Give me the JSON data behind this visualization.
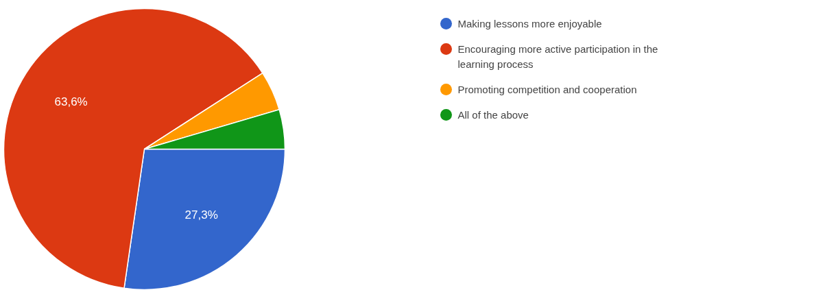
{
  "chart_data": {
    "type": "pie",
    "categories": [
      "Making lessons more enjoyable",
      "Encouraging more active participation in the learning process",
      "Promoting competition and cooperation",
      "All of the above"
    ],
    "values": [
      27.3,
      63.6,
      4.55,
      4.55
    ],
    "colors": [
      "#3366cc",
      "#dc3912",
      "#ff9900",
      "#109618"
    ],
    "value_labels": [
      "27,3%",
      "63,6%",
      null,
      null
    ],
    "legend": "right"
  }
}
